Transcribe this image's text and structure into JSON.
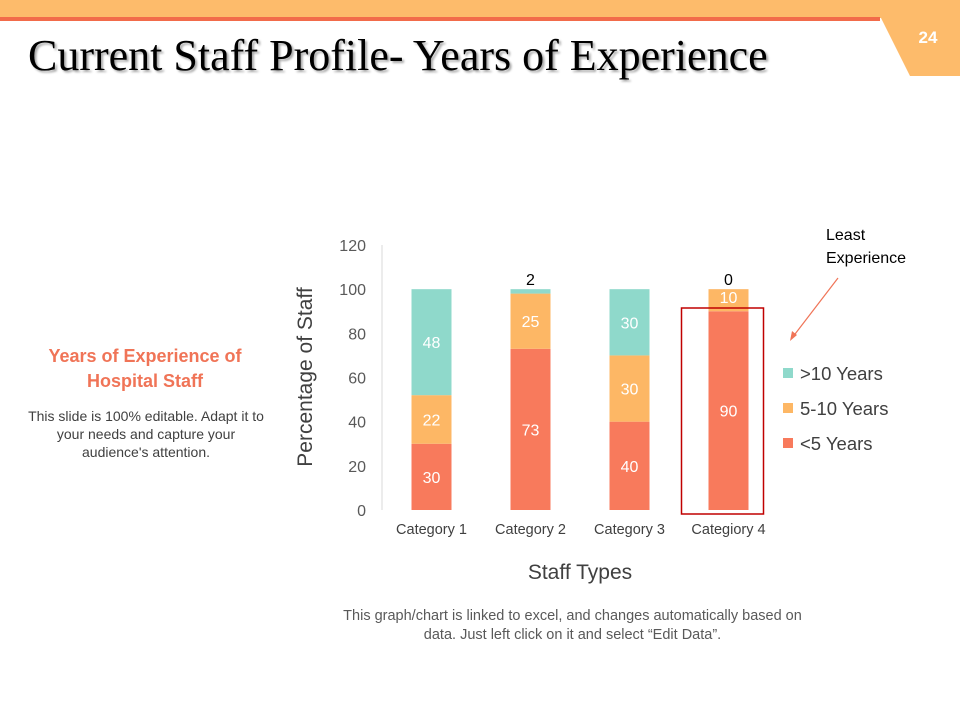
{
  "slide": {
    "title": "Current Staff Profile- Years of Experience",
    "page_number": "24",
    "accent_colors": {
      "bar": "#fdbb6b",
      "line": "#f26b4a"
    }
  },
  "sidebar": {
    "heading": "Years of Experience of Hospital Staff",
    "text": "This slide is 100% editable. Adapt it to your needs and capture your audience's attention."
  },
  "note": "This graph/chart is linked to excel, and changes automatically based on data. Just left click on it and select “Edit Data”.",
  "chart_data": {
    "type": "bar",
    "stacked": true,
    "categories": [
      "Category 1",
      "Category 2",
      "Category 3",
      "Categiory 4"
    ],
    "series": [
      {
        "name": "<5 Years",
        "values": [
          30,
          73,
          40,
          90
        ],
        "color": "#f87a5c",
        "label_color": "#ffffff"
      },
      {
        "name": "5-10 Years",
        "values": [
          22,
          25,
          30,
          10
        ],
        "color": "#fdb765",
        "label_color": "#ffffff"
      },
      {
        "name": ">10 Years",
        "values": [
          48,
          2,
          30,
          0
        ],
        "color": "#8fd9cb",
        "label_color": "#ffffff"
      }
    ],
    "legend_order": [
      ">10 Years",
      "5-10 Years",
      "<5 Years"
    ],
    "xlabel": "Staff Types",
    "ylabel": "Percentage of Staff",
    "ylim": [
      0,
      120
    ],
    "yticks": [
      0,
      20,
      40,
      60,
      80,
      100,
      120
    ],
    "grid": false,
    "legend_position": "right",
    "annotation": {
      "text": "Least Experience",
      "lines": [
        "Least",
        "Experience"
      ],
      "target_category": "Categiory 4",
      "box_color": "#c00000",
      "arrow_color": "#f07457"
    }
  }
}
